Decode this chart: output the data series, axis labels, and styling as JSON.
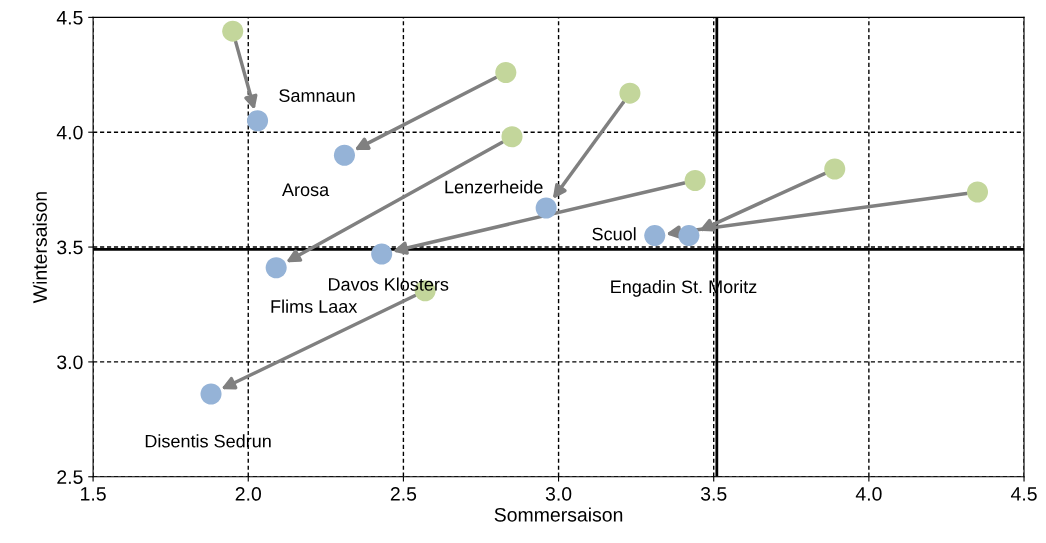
{
  "chart_data": {
    "type": "scatter",
    "xlabel": "Sommersaison",
    "ylabel": "Wintersaison",
    "xlim": [
      1.5,
      4.5
    ],
    "xticks": [
      {
        "value": 1.5,
        "label": "1.5"
      },
      {
        "value": 2.0,
        "label": "2.0"
      },
      {
        "value": 2.5,
        "label": "2.5"
      },
      {
        "value": 3.0,
        "label": "3.0"
      },
      {
        "value": 3.5,
        "label": "3.5"
      },
      {
        "value": 4.0,
        "label": "4.0"
      },
      {
        "value": 4.5,
        "label": "4.5"
      }
    ],
    "ylim": [
      2.5,
      4.5
    ],
    "yticks": [
      {
        "value": 2.5,
        "label": "2.5"
      },
      {
        "value": 3.0,
        "label": "3.0"
      },
      {
        "value": 3.5,
        "label": "3.5"
      },
      {
        "value": 4.0,
        "label": "4.0"
      },
      {
        "value": 4.5,
        "label": "4.5"
      }
    ],
    "grid": true,
    "marker": "circle",
    "legend": false,
    "series": [
      {
        "color": "#c3d69b",
        "x": [
          1.95,
          2.83,
          2.85,
          3.23,
          3.44,
          4.35,
          3.89,
          2.57
        ],
        "values": [
          4.44,
          4.26,
          3.98,
          4.17,
          3.79,
          3.74,
          3.84,
          3.31
        ]
      },
      {
        "color": "#95b3d7",
        "x": [
          2.03,
          2.31,
          2.09,
          2.96,
          2.43,
          3.31,
          3.42,
          1.88
        ],
        "values": [
          4.05,
          3.9,
          3.41,
          3.67,
          3.47,
          3.55,
          3.55,
          2.86
        ]
      }
    ],
    "ref_lines": [
      {
        "axis": "x",
        "value": 3.51,
        "color": "#000000"
      },
      {
        "axis": "y",
        "value": 3.49,
        "color": "#000000"
      }
    ],
    "annotations": [
      {
        "text": "Samnaun",
        "x": 2.03,
        "y": 4.05
      },
      {
        "text": "Arosa",
        "x": 2.31,
        "y": 3.9
      },
      {
        "text": "Flims Laax",
        "x": 2.09,
        "y": 3.41
      },
      {
        "text": "Lenzerheide",
        "x": 2.96,
        "y": 3.67
      },
      {
        "text": "Davos Klosters",
        "x": 2.43,
        "y": 3.47
      },
      {
        "text": "Scuol",
        "x": 3.31,
        "y": 3.55
      },
      {
        "text": "Engadin St. Moritz",
        "x": 3.42,
        "y": 3.55
      },
      {
        "text": "Disentis Sedrun",
        "x": 1.88,
        "y": 2.86
      }
    ]
  }
}
